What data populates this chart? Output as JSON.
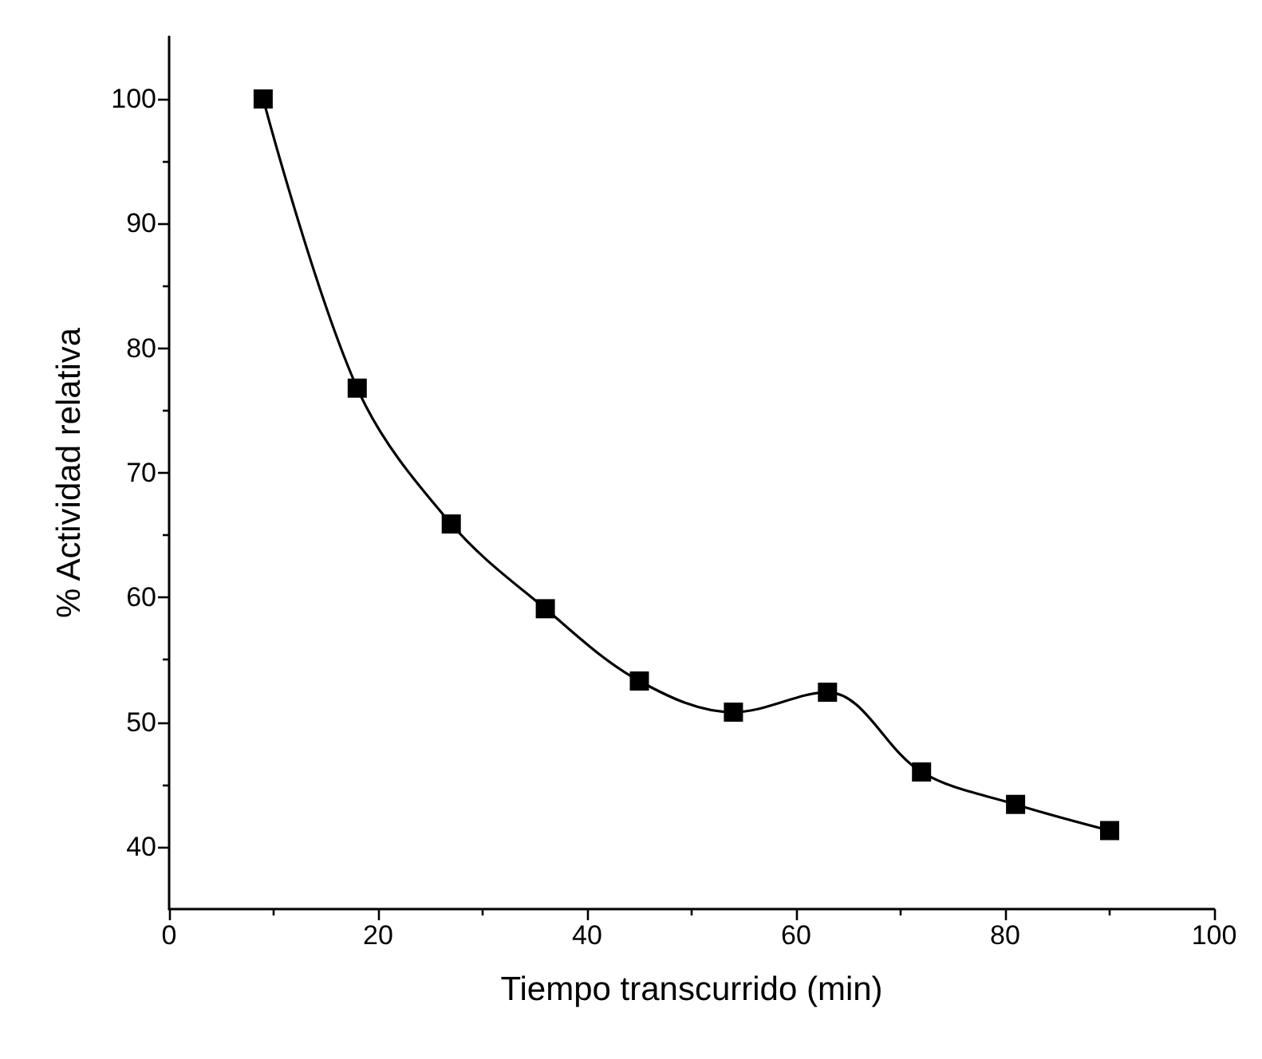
{
  "chart_data": {
    "type": "line",
    "xlabel": "Tiempo transcurrido (min)",
    "ylabel": "% Actividad relativa",
    "x": [
      9,
      18,
      27,
      36,
      45,
      54,
      63,
      72,
      81,
      90
    ],
    "series": [
      {
        "color": "#000000",
        "values": [
          100,
          76.8,
          65.9,
          59.1,
          53.3,
          50.8,
          52.4,
          46.0,
          43.4,
          41.3
        ]
      }
    ],
    "xlim": [
      0,
      100
    ],
    "xticks": [
      0,
      20,
      40,
      60,
      80,
      100
    ],
    "ylim": [
      35,
      105
    ],
    "yticks": [
      40,
      50,
      60,
      70,
      80,
      90,
      100
    ],
    "marker": "square",
    "line_style": "solid"
  }
}
